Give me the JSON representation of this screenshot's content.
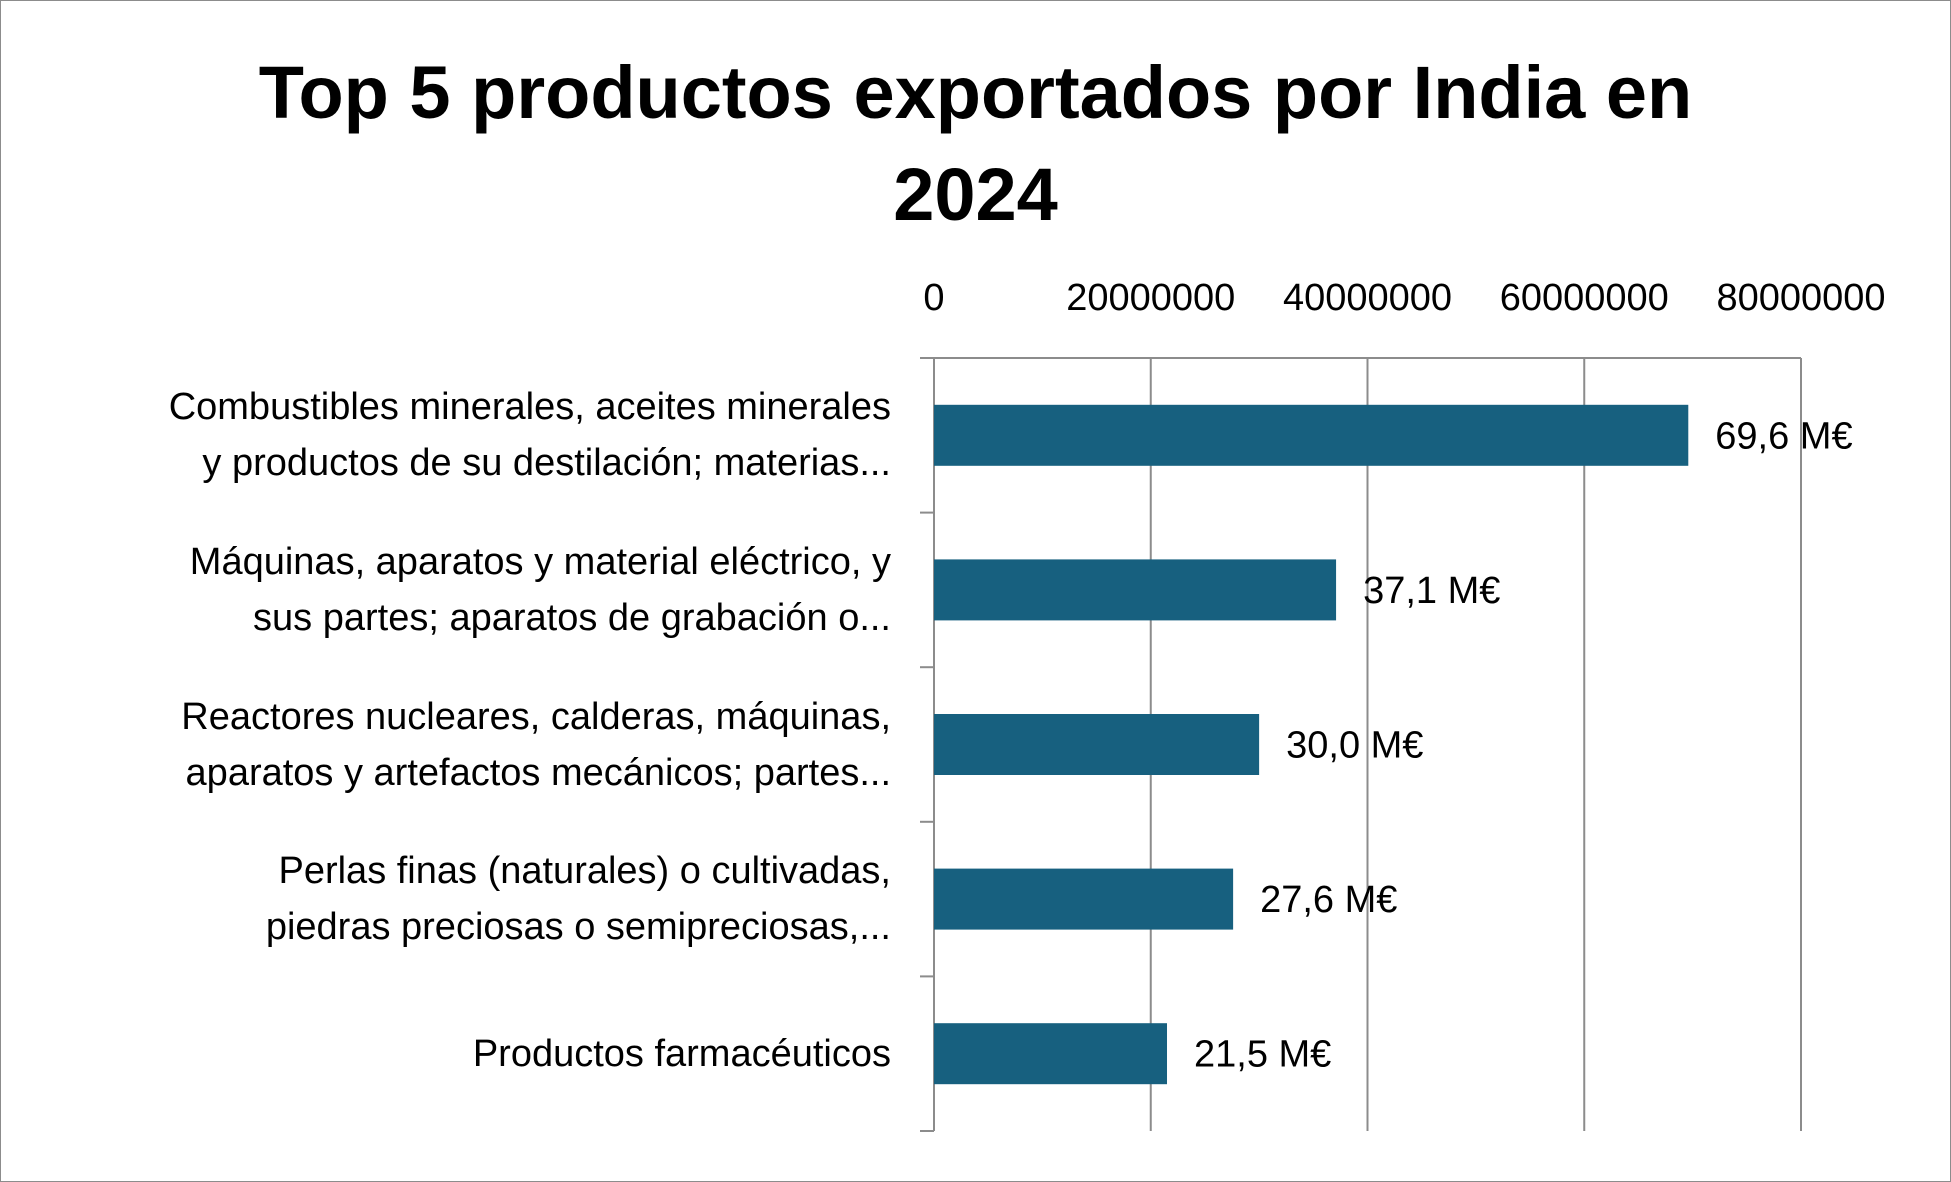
{
  "chart_data": {
    "type": "bar",
    "orientation": "horizontal",
    "title_lines": [
      "Top 5 productos exportados por India en",
      "2024"
    ],
    "categories": [
      [
        "Combustibles minerales, aceites minerales",
        "y productos de su destilación; materias..."
      ],
      [
        "Máquinas, aparatos y material eléctrico, y",
        "sus partes; aparatos de grabación o..."
      ],
      [
        "Reactores nucleares, calderas, máquinas,",
        "aparatos y artefactos mecánicos; partes..."
      ],
      [
        "Perlas finas (naturales) o cultivadas,",
        "piedras preciosas o semipreciosas,..."
      ],
      [
        "Productos farmacéuticos"
      ]
    ],
    "values": [
      69600000,
      37100000,
      30000000,
      27600000,
      21500000
    ],
    "data_labels": [
      "69,6 M€",
      "37,1 M€",
      "30,0 M€",
      "27,6 M€",
      "21,5 M€"
    ],
    "x_ticks": [
      "0",
      "20000000",
      "40000000",
      "60000000",
      "80000000"
    ],
    "xlim": [
      0,
      80000000
    ],
    "axis_position": "top",
    "grid": true,
    "legend": "none",
    "bar_color": "#17607f"
  }
}
